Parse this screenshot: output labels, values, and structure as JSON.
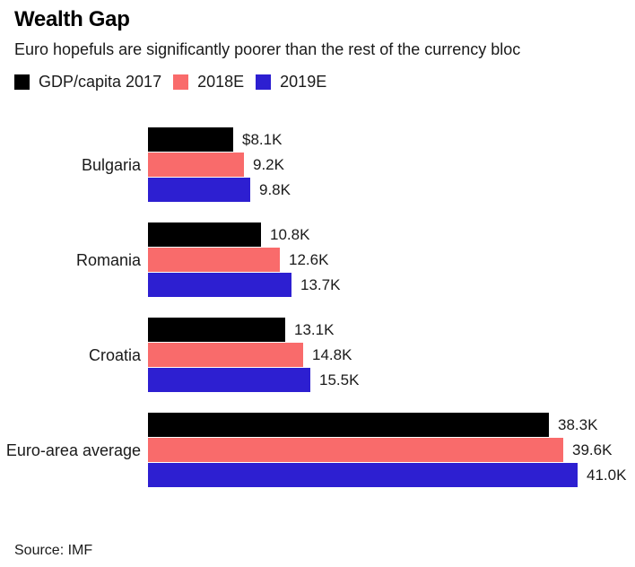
{
  "header": {
    "title": "Wealth Gap",
    "subtitle": "Euro hopefuls are significantly poorer than the rest of the currency bloc"
  },
  "footer": {
    "source": "Source: IMF"
  },
  "colors": {
    "series_2017": "#000000",
    "series_2018e": "#F96B6B",
    "series_2019e": "#2D1FD1",
    "text": "#1a1a1a",
    "background": "#ffffff"
  },
  "chart_data": {
    "type": "bar",
    "orientation": "horizontal",
    "title": "Wealth Gap",
    "subtitle": "Euro hopefuls are significantly poorer than the rest of the currency bloc",
    "source": "Source: IMF",
    "unit": "thousand USD per capita",
    "grid": false,
    "legend_position": "top",
    "xlim": [
      0,
      41
    ],
    "categories": [
      "Bulgaria",
      "Romania",
      "Croatia",
      "Euro-area average"
    ],
    "series": [
      {
        "name": "GDP/capita 2017",
        "color": "#000000",
        "values": [
          8.1,
          10.8,
          13.1,
          38.3
        ],
        "labels": [
          "$8.1K",
          "10.8K",
          "13.1K",
          "38.3K"
        ]
      },
      {
        "name": "2018E",
        "color": "#F96B6B",
        "values": [
          9.2,
          12.6,
          14.8,
          39.6
        ],
        "labels": [
          "9.2K",
          "12.6K",
          "14.8K",
          "39.6K"
        ]
      },
      {
        "name": "2019E",
        "color": "#2D1FD1",
        "values": [
          9.8,
          13.7,
          15.5,
          41.0
        ],
        "labels": [
          "9.8K",
          "13.7K",
          "15.5K",
          "41.0K"
        ]
      }
    ]
  }
}
